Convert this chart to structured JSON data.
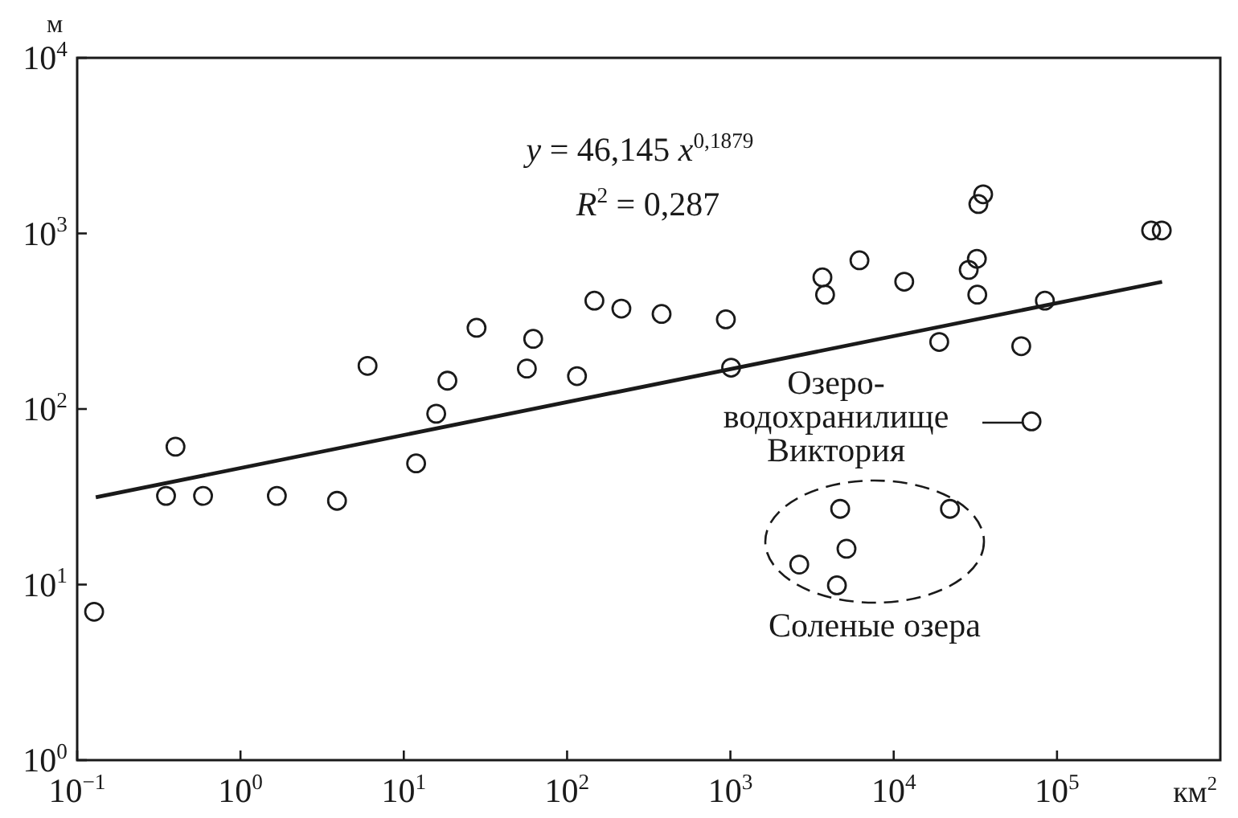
{
  "chart_data": {
    "type": "scatter",
    "log": "xy",
    "line_style": "solid",
    "ylabel": "м",
    "xlabel": "км$^{2}$",
    "xlim": [
      0.1,
      1000000
    ],
    "ylim": [
      1,
      10000
    ],
    "xticks": [
      {
        "value": 0.1,
        "label": "10$^{−1}$"
      },
      {
        "value": 1,
        "label": "10$^{0}$"
      },
      {
        "value": 10,
        "label": "10$^{1}$"
      },
      {
        "value": 100,
        "label": "10$^{2}$"
      },
      {
        "value": 1000,
        "label": "10$^{3}$"
      },
      {
        "value": 10000,
        "label": "10$^{4}$"
      },
      {
        "value": 100000,
        "label": "10$^{5}$"
      }
    ],
    "yticks": [
      {
        "value": 1,
        "label": "10$^{0}$"
      },
      {
        "value": 10,
        "label": "10$^{1}$"
      },
      {
        "value": 100,
        "label": "10$^{2}$"
      },
      {
        "value": 1000,
        "label": "10$^{3}$"
      },
      {
        "value": 10000,
        "label": "10$^{4}$"
      }
    ],
    "series": [
      {
        "marker": "circle",
        "color": "#1a1a1a",
        "x": [
          0.127,
          0.35,
          0.4,
          0.59,
          1.67,
          3.9,
          6,
          11.9,
          15.8,
          18.5,
          27.9,
          56.7,
          62,
          115,
          147,
          215,
          379,
          938,
          1010,
          3660,
          3800,
          6170,
          11600,
          19000,
          28800,
          32300,
          32500,
          35300,
          33000,
          60400,
          84300,
          69800,
          377000,
          438000,
          4700,
          22100,
          5140,
          2640,
          4490
        ],
        "values": [
          7,
          32,
          61,
          32,
          32,
          30,
          176,
          49,
          94,
          145,
          290,
          170,
          251,
          154,
          414,
          373,
          348,
          324,
          172,
          562,
          448,
          703,
          531,
          241,
          620,
          717,
          448,
          1670,
          1470,
          228,
          414,
          85,
          1040,
          1040,
          27,
          27,
          16,
          13,
          9.9
        ]
      },
      {
        "type": "line",
        "color": "#1a1a1a",
        "x": [
          0.13,
          440000
        ],
        "values": [
          31.4,
          530
        ]
      }
    ],
    "annotations": [
      "y = 46,145 x$^{0,1879}$",
      "R$^{2}$ = 0,287",
      "Озеро-\nводохранилище\nВиктория",
      "Соленые озера"
    ]
  }
}
